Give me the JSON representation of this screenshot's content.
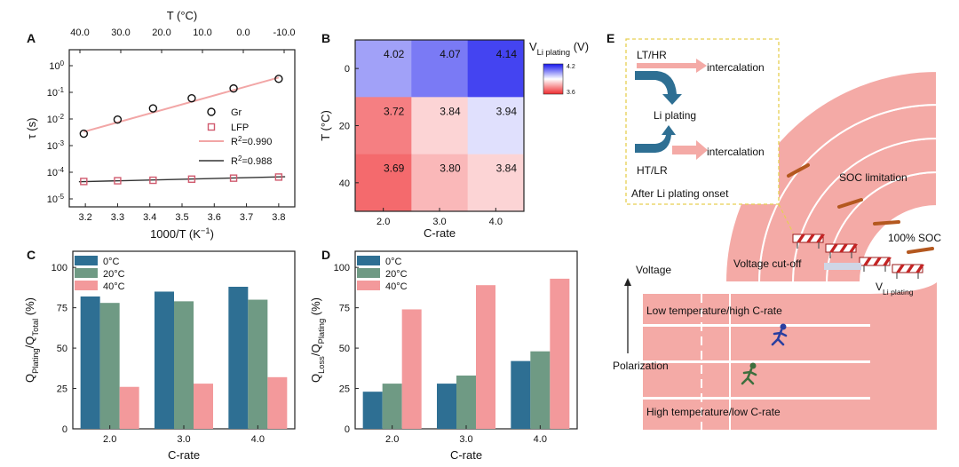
{
  "colors": {
    "blue": "#2e6f93",
    "green": "#6f9a84",
    "pink": "#f3999b",
    "road": "#f4aaa6",
    "road_dark": "#e88d88",
    "gr": "#111111",
    "lfp": "#d05a6e",
    "fit_gr": "#f2a6a6",
    "fit_lfp": "#333333",
    "hm_low": "#ef2a2e",
    "hm_mid": "#ffffff",
    "hm_high": "#1515ee",
    "arrow": "#2e6f93",
    "inset_border": "#e6cf52",
    "dash_orange": "#b4581f",
    "runner_blue": "#2a3fa0",
    "runner_green": "#3e6f3e"
  },
  "chart_data": [
    {
      "id": "A",
      "type": "scatter",
      "panel_label": "A",
      "xlabel": "1000/T (K",
      "xlabel_sup": "−1",
      "xlabel_tail": ")",
      "ylabel": "τ (s)",
      "xlim": [
        3.15,
        3.85
      ],
      "ylog": true,
      "ylim_exp": [
        -5.3,
        0.6
      ],
      "x_ticks": [
        "3.2",
        "3.3",
        "3.4",
        "3.5",
        "3.6",
        "3.7",
        "3.8"
      ],
      "y_ticks": [
        {
          "exp": 0,
          "base": "10",
          "sup": "0"
        },
        {
          "exp": -1,
          "base": "10",
          "sup": "-1"
        },
        {
          "exp": -2,
          "base": "10",
          "sup": "-2"
        },
        {
          "exp": -3,
          "base": "10",
          "sup": "-3"
        },
        {
          "exp": -4,
          "base": "10",
          "sup": "-4"
        },
        {
          "exp": -5,
          "base": "10",
          "sup": "-5"
        }
      ],
      "top_axis_title": "T (°C)",
      "top_ticks": [
        "40.0",
        "30.0",
        "20.0",
        "10.0",
        "0.0",
        "-10.0"
      ],
      "series": [
        {
          "name": "Gr",
          "marker": "circle",
          "x": [
            3.195,
            3.3,
            3.41,
            3.53,
            3.66,
            3.8
          ],
          "y": [
            0.0028,
            0.0095,
            0.025,
            0.06,
            0.14,
            0.32
          ]
        },
        {
          "name": "LFP",
          "marker": "square",
          "x": [
            3.195,
            3.3,
            3.41,
            3.53,
            3.66,
            3.8
          ],
          "y": [
            4.5e-05,
            4.8e-05,
            5e-05,
            5.5e-05,
            6e-05,
            6.6e-05
          ]
        }
      ],
      "fits": [
        {
          "label_base": "R",
          "label_sup": "2",
          "label_value": "=0.990",
          "x": [
            3.195,
            3.8
          ],
          "y": [
            0.0033,
            0.36
          ]
        },
        {
          "label_base": "R",
          "label_sup": "2",
          "label_value": "=0.988",
          "x": [
            3.18,
            3.82
          ],
          "y": [
            4.4e-05,
            6.8e-05
          ]
        }
      ]
    },
    {
      "id": "B",
      "type": "heatmap",
      "panel_label": "B",
      "xlabel": "C-rate",
      "ylabel": "T (°C)",
      "x_categories": [
        "2.0",
        "3.0",
        "4.0"
      ],
      "y_categories": [
        "0",
        "20",
        "40"
      ],
      "values": [
        [
          4.02,
          4.07,
          4.14
        ],
        [
          3.72,
          3.84,
          3.94
        ],
        [
          3.69,
          3.8,
          3.84
        ]
      ],
      "colorbar_title": "V",
      "colorbar_sub": "Li plating",
      "colorbar_unit": " (V)",
      "colorbar_range": [
        3.6,
        4.2
      ],
      "colorbar_ticks": [
        "4.2",
        "3.6"
      ]
    },
    {
      "id": "C",
      "type": "bar",
      "panel_label": "C",
      "xlabel": "C-rate",
      "ylabel_main": "Q",
      "ylabel_sub1": "Plating",
      "ylabel_mid": "/Q",
      "ylabel_sub2": "Total",
      "ylabel_tail": " (%)",
      "categories": [
        "2.0",
        "3.0",
        "4.0"
      ],
      "ylim": [
        0,
        110
      ],
      "y_ticks": [
        0,
        25,
        50,
        75,
        100
      ],
      "series": [
        {
          "name": "0°C",
          "values": [
            82,
            85,
            88
          ]
        },
        {
          "name": "20°C",
          "values": [
            78,
            79,
            80
          ]
        },
        {
          "name": "40°C",
          "values": [
            26,
            28,
            32
          ]
        }
      ]
    },
    {
      "id": "D",
      "type": "bar",
      "panel_label": "D",
      "xlabel": "C-rate",
      "ylabel_main": "Q",
      "ylabel_sub1": "Loss",
      "ylabel_mid": "/Q",
      "ylabel_sub2": "Plating",
      "ylabel_tail": " (%)",
      "categories": [
        "2.0",
        "3.0",
        "4.0"
      ],
      "ylim": [
        0,
        110
      ],
      "y_ticks": [
        0,
        25,
        50,
        75,
        100
      ],
      "series": [
        {
          "name": "0°C",
          "values": [
            23,
            28,
            42
          ]
        },
        {
          "name": "20°C",
          "values": [
            28,
            33,
            48
          ]
        },
        {
          "name": "40°C",
          "values": [
            74,
            89,
            93
          ]
        }
      ]
    }
  ],
  "panel_e": {
    "panel_label": "E",
    "inset": {
      "lt_hr": "LT/HR",
      "ht_lr": "HT/LR",
      "intercalation_top": "intercalation",
      "intercalation_bottom": "intercalation",
      "li_plating": "Li plating",
      "caption": "After Li plating onset"
    },
    "soc_limitation": "SOC limitation",
    "soc_100": "100% SOC",
    "voltage": "Voltage",
    "voltage_cutoff": "Voltage cut-off",
    "v_main": "V",
    "v_sub": "Li plating",
    "low_temp": "Low temperature/high C-rate",
    "polarization": "Polarization",
    "high_temp": "High temperature/low C-rate"
  }
}
